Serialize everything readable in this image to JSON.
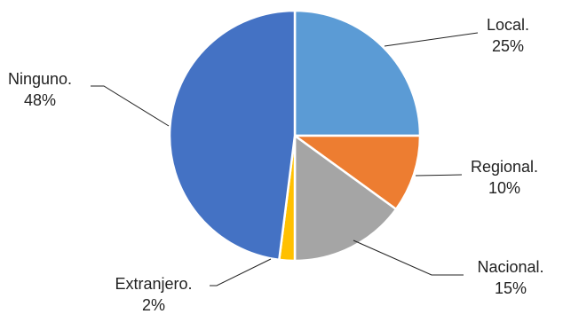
{
  "chart_data": {
    "type": "pie",
    "title": "",
    "slices": [
      {
        "label": "Local.",
        "value": 25,
        "value_label": "25%",
        "color": "#5B9BD5"
      },
      {
        "label": "Regional.",
        "value": 10,
        "value_label": "10%",
        "color": "#ED7D31"
      },
      {
        "label": "Nacional.",
        "value": 15,
        "value_label": "15%",
        "color": "#A5A5A5"
      },
      {
        "label": "Extranjero.",
        "value": 2,
        "value_label": "2%",
        "color": "#FFC000"
      },
      {
        "label": "Ninguno.",
        "value": 48,
        "value_label": "48%",
        "color": "#4472C4"
      }
    ],
    "start_angle": "12 o'clock",
    "direction": "clockwise",
    "legend": "none"
  }
}
